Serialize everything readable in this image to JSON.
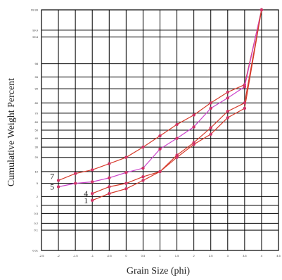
{
  "chart_data": {
    "type": "line",
    "title": "",
    "xlabel": "Grain Size (phi)",
    "ylabel": "Cumulative Weight Percent",
    "y_scale": "probability",
    "grid": true,
    "x_ticks": [
      "-2.5",
      "-2",
      "-1.5",
      "-1",
      "-0.5",
      "0",
      "0.5",
      "1",
      "1.5",
      "2",
      "2.5",
      "3",
      "3.5",
      "4",
      "4.5"
    ],
    "y_ticks": [
      "0.01",
      "0.1",
      "0.2",
      "0.5",
      "1",
      "2",
      "5",
      "10",
      "20",
      "30",
      "40",
      "50",
      "60",
      "70",
      "80",
      "90",
      "95",
      "98",
      "99.8",
      "99.9",
      "99.99"
    ],
    "xlim": [
      -2.5,
      4.5
    ],
    "ylim": [
      0.01,
      99.99
    ],
    "series": [
      {
        "name": "7",
        "x": [
          -2,
          -1.5,
          -1,
          -0.5,
          0,
          0.5,
          1,
          1.5,
          2,
          2.5,
          3,
          3.5,
          4
        ],
        "y": [
          6,
          9,
          11,
          15,
          20,
          30,
          43,
          57,
          68,
          80,
          88,
          92,
          99.99
        ]
      },
      {
        "name": "5",
        "x": [
          -2,
          -1.5,
          -1,
          -0.5,
          0,
          0.5,
          1,
          1.5,
          2,
          2.5,
          3,
          3.5,
          4
        ],
        "y": [
          4,
          5,
          5.5,
          7,
          9.5,
          12,
          28,
          40,
          54,
          75,
          84,
          91,
          99.99
        ]
      },
      {
        "name": "4",
        "x": [
          -1,
          -0.5,
          0,
          0.5,
          1,
          1.5,
          2,
          2.5,
          3,
          3.5,
          4
        ],
        "y": [
          2.5,
          4,
          5,
          7.5,
          10,
          20,
          33,
          45,
          65,
          75,
          99.99
        ]
      },
      {
        "name": "1",
        "x": [
          -1,
          -0.5,
          0,
          0.5,
          1,
          1.5,
          2,
          2.5,
          3,
          3.5,
          4
        ],
        "y": [
          1.5,
          2.5,
          3.5,
          6,
          10,
          22,
          35,
          53,
          72,
          80,
          99.99
        ]
      }
    ],
    "colors": {
      "series": [
        "#d63a2a",
        "#cc44cc",
        "#d63a2a",
        "#d63a2a"
      ],
      "marker": "#cc3366",
      "grid": "#000000"
    }
  }
}
